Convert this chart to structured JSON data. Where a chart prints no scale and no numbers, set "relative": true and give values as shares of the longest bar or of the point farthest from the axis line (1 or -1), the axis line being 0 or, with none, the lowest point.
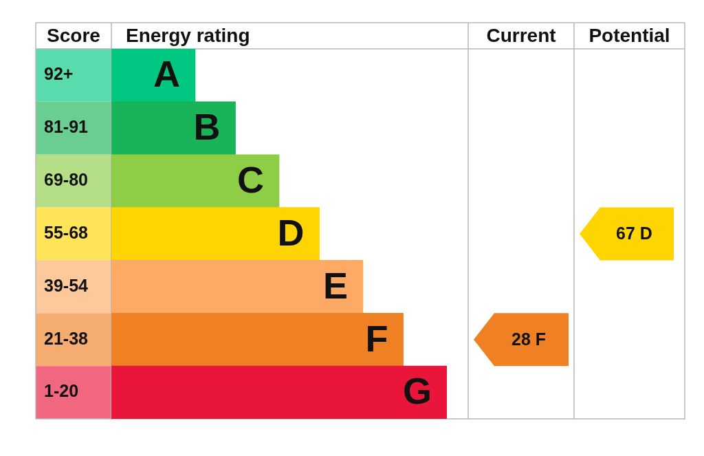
{
  "chart_data": {
    "type": "bar",
    "orientation": "horizontal",
    "relative": true,
    "categories": [
      "A",
      "B",
      "C",
      "D",
      "E",
      "F",
      "G"
    ],
    "values": [
      0.25,
      0.37,
      0.5,
      0.62,
      0.75,
      0.87,
      1
    ],
    "colors": [
      "#00c781",
      "#19b459",
      "#8dce46",
      "#ffd500",
      "#fcaa65",
      "#ef8023",
      "#e9153b"
    ],
    "annotations": [
      "Score",
      "Energy rating",
      "Current",
      "Potential",
      "92+",
      "81-91",
      "69-80",
      "55-68",
      "39-54",
      "21-38",
      "1-20",
      "28 F",
      "67 D"
    ]
  }
}
